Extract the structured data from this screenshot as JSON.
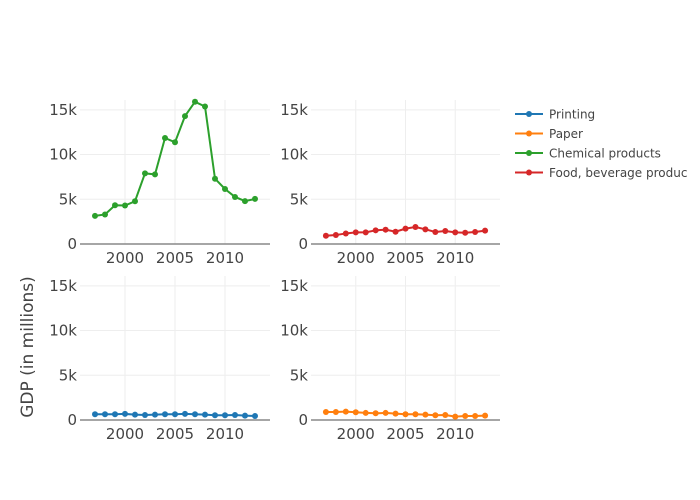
{
  "chart_data": {
    "type": "line",
    "ylabel": "GDP (in millions)",
    "x": [
      1997,
      1998,
      1999,
      2000,
      2001,
      2002,
      2003,
      2004,
      2005,
      2006,
      2007,
      2008,
      2009,
      2010,
      2011,
      2012,
      2013
    ],
    "xlim": [
      1995.5,
      2014.5
    ],
    "ylim": [
      0,
      16100
    ],
    "xticks": [
      2000,
      2005,
      2010
    ],
    "xtick_labels": [
      "2000",
      "2005",
      "2010"
    ],
    "yticks": [
      0,
      5000,
      10000,
      15000
    ],
    "ytick_labels": [
      "0",
      "5k",
      "10k",
      "15k"
    ],
    "grid": true,
    "legend_placement": "top-right",
    "subplots": [
      {
        "position": "top-left",
        "series": 2
      },
      {
        "position": "top-right",
        "series": 3
      },
      {
        "position": "bottom-left",
        "series": 0
      },
      {
        "position": "bottom-right",
        "series": 1
      }
    ],
    "series": [
      {
        "name": "Printing",
        "color": "#1f77b4",
        "values": [
          640,
          640,
          640,
          680,
          600,
          560,
          600,
          640,
          640,
          680,
          640,
          600,
          530,
          530,
          560,
          490,
          450
        ]
      },
      {
        "name": "Paper",
        "color": "#ff7f0e",
        "values": [
          900,
          900,
          940,
          860,
          790,
          750,
          790,
          710,
          640,
          640,
          600,
          530,
          560,
          380,
          450,
          450,
          490
        ]
      },
      {
        "name": "Chemical products",
        "color": "#2ca02c",
        "values": [
          3150,
          3300,
          4330,
          4300,
          4780,
          7900,
          7780,
          11850,
          11370,
          14300,
          15900,
          15370,
          7300,
          6150,
          5260,
          4800,
          5040
        ]
      },
      {
        "name": "Food, beverage produc",
        "color": "#d62728",
        "values": [
          920,
          1000,
          1180,
          1300,
          1300,
          1530,
          1600,
          1370,
          1720,
          1900,
          1640,
          1340,
          1450,
          1300,
          1260,
          1340,
          1490
        ]
      }
    ]
  }
}
